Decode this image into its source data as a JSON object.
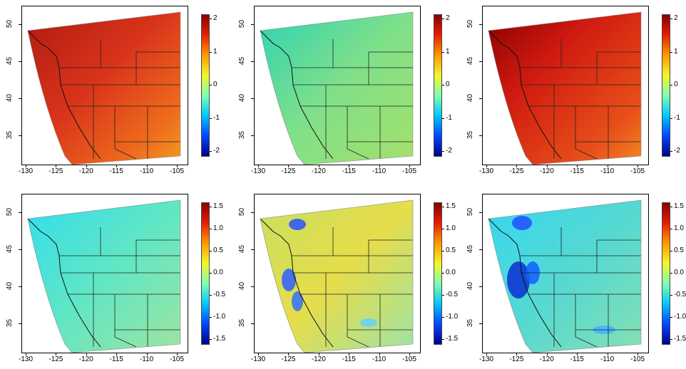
{
  "map_panels": [
    {
      "id": "top-left",
      "fill": "red-orange",
      "colorbar_ticks": [
        "2",
        "1",
        "0",
        "-1",
        "-2"
      ]
    },
    {
      "id": "top-middle",
      "fill": "green-cyan",
      "colorbar_ticks": [
        "2",
        "1",
        "0",
        "-1",
        "-2"
      ]
    },
    {
      "id": "top-right",
      "fill": "red-dark",
      "colorbar_ticks": [
        "2",
        "1",
        "0",
        "-1",
        "-2"
      ]
    },
    {
      "id": "bottom-left",
      "fill": "cyan-green",
      "colorbar_ticks": [
        "1.5",
        "1.0",
        "0.5",
        "0.0",
        "-0.5",
        "-1.0",
        "-1.5"
      ]
    },
    {
      "id": "bottom-middle",
      "fill": "yellow-blue",
      "colorbar_ticks": [
        "1.5",
        "1.0",
        "0.5",
        "0.0",
        "-0.5",
        "-1.0",
        "-1.5"
      ]
    },
    {
      "id": "bottom-right",
      "fill": "cyan-darkblue",
      "colorbar_ticks": [
        "1.5",
        "1.0",
        "0.5",
        "0.0",
        "-0.5",
        "-1.0",
        "-1.5"
      ]
    }
  ],
  "x_ticks": [
    "-130",
    "-125",
    "-120",
    "-115",
    "-110",
    "-105"
  ],
  "y_ticks": [
    "35",
    "40",
    "45",
    "50"
  ],
  "colorscale": [
    "#00008b",
    "#0047ff",
    "#00c8ff",
    "#7fffb0",
    "#f5f52a",
    "#ff9a00",
    "#e81e00",
    "#8b0000"
  ]
}
